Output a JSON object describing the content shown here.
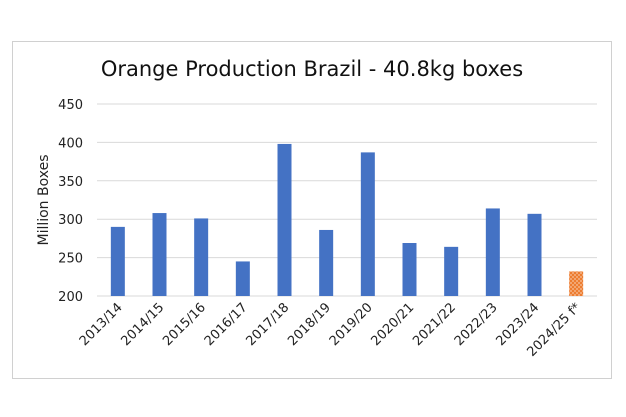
{
  "chart_data": {
    "type": "bar",
    "title": "Orange Production Brazil - 40.8kg boxes",
    "xlabel": "",
    "ylabel": "Million Boxes",
    "ylim": [
      200,
      450
    ],
    "yticks": [
      200,
      250,
      300,
      350,
      400,
      450
    ],
    "grid": true,
    "categories": [
      "2013/14",
      "2014/15",
      "2015/16",
      "2016/17",
      "2017/18",
      "2018/19",
      "2019/20",
      "2020/21",
      "2021/22",
      "2022/23",
      "2023/24",
      "2024/25 f*"
    ],
    "values": [
      290,
      308,
      301,
      245,
      398,
      286,
      387,
      269,
      264,
      314,
      307,
      232
    ],
    "colors": {
      "bar": "#4472c4",
      "forecast_bar": "#ed7d31",
      "grid": "#d9d9d9"
    },
    "forecast_index": 11
  }
}
